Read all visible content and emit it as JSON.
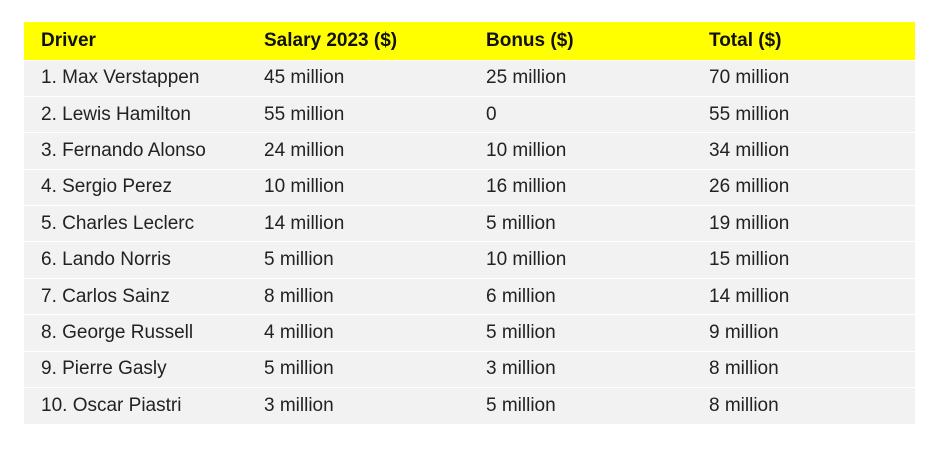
{
  "chart_data": {
    "type": "table",
    "columns": [
      "Driver",
      "Salary 2023 ($)",
      "Bonus ($)",
      "Total ($)"
    ],
    "rows": [
      [
        "1. Max Verstappen",
        "45 million",
        "25 million",
        "70 million"
      ],
      [
        "2. Lewis Hamilton",
        "55 million",
        "0",
        "55 million"
      ],
      [
        "3. Fernando Alonso",
        "24 million",
        "10 million",
        "34 million"
      ],
      [
        "4. Sergio Perez",
        "10 million",
        "16 million",
        "26 million"
      ],
      [
        "5. Charles Leclerc",
        "14 million",
        "5 million",
        "19 million"
      ],
      [
        "6. Lando Norris",
        "5 million",
        "10 million",
        "15 million"
      ],
      [
        "7. Carlos Sainz",
        "8 million",
        "6 million",
        "14 million"
      ],
      [
        "8. George Russell",
        "4 million",
        "5 million",
        "9 million"
      ],
      [
        "9. Pierre Gasly",
        "5 million",
        "3 million",
        "8 million"
      ],
      [
        "10. Oscar Piastri",
        "3 million",
        "5 million",
        "8 million"
      ]
    ]
  },
  "colors": {
    "header_background": "#ffff00",
    "row_background": "#f2f2f2",
    "row_separator": "#ffffff"
  }
}
